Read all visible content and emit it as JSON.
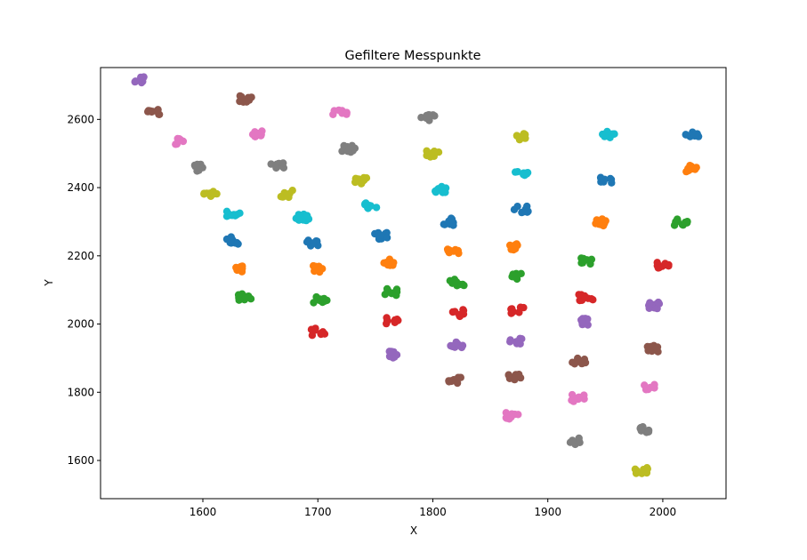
{
  "chart_data": {
    "type": "scatter",
    "title": "Gefiltere Messpunkte",
    "xlabel": "X",
    "ylabel": "Y",
    "xlim": [
      1511,
      2055
    ],
    "ylim": [
      1488,
      2752
    ],
    "xticks": [
      1600,
      1700,
      1800,
      1900,
      2000
    ],
    "yticks": [
      1600,
      1800,
      2000,
      2200,
      2400,
      2600
    ],
    "grid": false,
    "palette": [
      "#1f77b4",
      "#ff7f0e",
      "#2ca02c",
      "#d62728",
      "#9467bd",
      "#8c564b",
      "#e377c2",
      "#7f7f7f",
      "#bcbd22",
      "#17becf"
    ],
    "clusters": [
      {
        "x": 1545,
        "y": 2718,
        "color": "#9467bd"
      },
      {
        "x": 1557,
        "y": 2622,
        "color": "#8c564b"
      },
      {
        "x": 1577,
        "y": 2535,
        "color": "#e377c2"
      },
      {
        "x": 1596,
        "y": 2458,
        "color": "#7f7f7f"
      },
      {
        "x": 1607,
        "y": 2384,
        "color": "#bcbd22"
      },
      {
        "x": 1626,
        "y": 2325,
        "color": "#17becf"
      },
      {
        "x": 1627,
        "y": 2245,
        "color": "#1f77b4"
      },
      {
        "x": 1632,
        "y": 2162,
        "color": "#ff7f0e"
      },
      {
        "x": 1636,
        "y": 2078,
        "color": "#2ca02c"
      },
      {
        "x": 1637,
        "y": 2661,
        "color": "#8c564b"
      },
      {
        "x": 1648,
        "y": 2556,
        "color": "#e377c2"
      },
      {
        "x": 1665,
        "y": 2467,
        "color": "#7f7f7f"
      },
      {
        "x": 1672,
        "y": 2382,
        "color": "#bcbd22"
      },
      {
        "x": 1687,
        "y": 2313,
        "color": "#17becf"
      },
      {
        "x": 1696,
        "y": 2237,
        "color": "#1f77b4"
      },
      {
        "x": 1700,
        "y": 2161,
        "color": "#ff7f0e"
      },
      {
        "x": 1702,
        "y": 2073,
        "color": "#2ca02c"
      },
      {
        "x": 1700,
        "y": 1977,
        "color": "#d62728"
      },
      {
        "x": 1719,
        "y": 2618,
        "color": "#e377c2"
      },
      {
        "x": 1727,
        "y": 2514,
        "color": "#7f7f7f"
      },
      {
        "x": 1738,
        "y": 2420,
        "color": "#bcbd22"
      },
      {
        "x": 1747,
        "y": 2345,
        "color": "#17becf"
      },
      {
        "x": 1755,
        "y": 2259,
        "color": "#1f77b4"
      },
      {
        "x": 1762,
        "y": 2180,
        "color": "#ff7f0e"
      },
      {
        "x": 1763,
        "y": 2094,
        "color": "#2ca02c"
      },
      {
        "x": 1764,
        "y": 2008,
        "color": "#d62728"
      },
      {
        "x": 1763,
        "y": 1910,
        "color": "#9467bd"
      },
      {
        "x": 1796,
        "y": 2603,
        "color": "#7f7f7f"
      },
      {
        "x": 1800,
        "y": 2500,
        "color": "#bcbd22"
      },
      {
        "x": 1807,
        "y": 2393,
        "color": "#17becf"
      },
      {
        "x": 1813,
        "y": 2300,
        "color": "#1f77b4"
      },
      {
        "x": 1817,
        "y": 2212,
        "color": "#ff7f0e"
      },
      {
        "x": 1821,
        "y": 2123,
        "color": "#2ca02c"
      },
      {
        "x": 1821,
        "y": 2032,
        "color": "#d62728"
      },
      {
        "x": 1820,
        "y": 1940,
        "color": "#9467bd"
      },
      {
        "x": 1819,
        "y": 1834,
        "color": "#8c564b"
      },
      {
        "x": 1875,
        "y": 2550,
        "color": "#bcbd22"
      },
      {
        "x": 1877,
        "y": 2438,
        "color": "#17becf"
      },
      {
        "x": 1877,
        "y": 2335,
        "color": "#1f77b4"
      },
      {
        "x": 1873,
        "y": 2225,
        "color": "#ff7f0e"
      },
      {
        "x": 1872,
        "y": 2141,
        "color": "#2ca02c"
      },
      {
        "x": 1874,
        "y": 2040,
        "color": "#d62728"
      },
      {
        "x": 1873,
        "y": 1950,
        "color": "#9467bd"
      },
      {
        "x": 1872,
        "y": 1842,
        "color": "#8c564b"
      },
      {
        "x": 1869,
        "y": 1730,
        "color": "#e377c2"
      },
      {
        "x": 1952,
        "y": 2555,
        "color": "#17becf"
      },
      {
        "x": 1950,
        "y": 2420,
        "color": "#1f77b4"
      },
      {
        "x": 1945,
        "y": 2298,
        "color": "#ff7f0e"
      },
      {
        "x": 1935,
        "y": 2185,
        "color": "#2ca02c"
      },
      {
        "x": 1933,
        "y": 2077,
        "color": "#d62728"
      },
      {
        "x": 1929,
        "y": 2007,
        "color": "#9467bd"
      },
      {
        "x": 1927,
        "y": 1893,
        "color": "#8c564b"
      },
      {
        "x": 1926,
        "y": 1783,
        "color": "#e377c2"
      },
      {
        "x": 1925,
        "y": 1656,
        "color": "#7f7f7f"
      },
      {
        "x": 2026,
        "y": 2557,
        "color": "#1f77b4"
      },
      {
        "x": 2024,
        "y": 2456,
        "color": "#ff7f0e"
      },
      {
        "x": 2016,
        "y": 2297,
        "color": "#2ca02c"
      },
      {
        "x": 2000,
        "y": 2172,
        "color": "#d62728"
      },
      {
        "x": 1994,
        "y": 2055,
        "color": "#9467bd"
      },
      {
        "x": 1990,
        "y": 1928,
        "color": "#8c564b"
      },
      {
        "x": 1988,
        "y": 1813,
        "color": "#e377c2"
      },
      {
        "x": 1982,
        "y": 1690,
        "color": "#7f7f7f"
      },
      {
        "x": 1981,
        "y": 1570,
        "color": "#bcbd22"
      }
    ]
  }
}
